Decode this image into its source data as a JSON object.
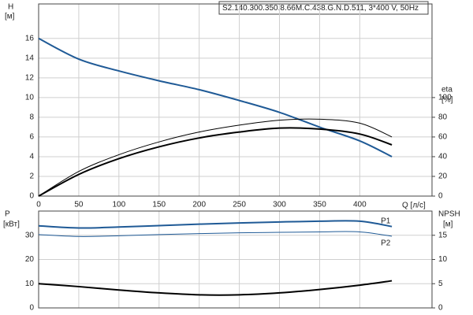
{
  "chart_data": [
    {
      "type": "line",
      "title": "S2.140.300.350.8.66M.C.438.G.N.D.511, 3*400 V, 50Hz",
      "y_label": "H",
      "y_unit": "[м]",
      "y2_label": "eta",
      "y2_unit": "[%]",
      "x_label": "Q [л/с]",
      "x": [
        0,
        50,
        100,
        150,
        200,
        250,
        300,
        350,
        400,
        440
      ],
      "xlim": [
        0,
        490
      ],
      "xticks": [
        0,
        50,
        100,
        150,
        200,
        250,
        300,
        350,
        400
      ],
      "ylim": [
        0,
        19.5
      ],
      "yticks": [
        0,
        2,
        4,
        6,
        8,
        10,
        12,
        14,
        16
      ],
      "y2lim": [
        0,
        195
      ],
      "y2ticks": [
        0,
        20,
        40,
        60,
        80,
        100
      ],
      "grid": true,
      "series": [
        {
          "color": "#1f5a96",
          "linewidth": 2,
          "values": [
            16,
            13.9,
            12.7,
            11.7,
            10.8,
            9.7,
            8.5,
            7.0,
            5.6,
            4.0
          ]
        },
        {
          "color": "#000000",
          "linewidth": 1,
          "axis": "y2",
          "values": [
            0,
            25,
            42,
            55,
            65,
            72,
            77,
            78,
            74,
            60
          ]
        },
        {
          "color": "#000000",
          "linewidth": 2,
          "axis": "y2",
          "values": [
            0,
            22,
            38,
            50,
            59,
            65,
            69,
            68,
            63,
            52
          ]
        }
      ]
    },
    {
      "type": "line",
      "y_label": "P",
      "y_unit": "[кВт]",
      "y2_label": "NPSH",
      "y2_unit": "[м]",
      "x": [
        0,
        50,
        100,
        150,
        200,
        250,
        300,
        350,
        400,
        440
      ],
      "ylim": [
        0,
        40
      ],
      "yticks": [
        0,
        10,
        20,
        30
      ],
      "y2lim": [
        0,
        20
      ],
      "y2ticks": [
        0,
        5,
        10,
        15
      ],
      "grid": true,
      "series": [
        {
          "name": "P1",
          "color": "#1f5a96",
          "linewidth": 2,
          "values": [
            33.9,
            33.0,
            33.4,
            34.0,
            34.6,
            35.1,
            35.5,
            35.8,
            35.8,
            33.6
          ]
        },
        {
          "name": "P2",
          "color": "#1f5a96",
          "linewidth": 1,
          "values": [
            30.3,
            29.5,
            29.8,
            30.3,
            30.7,
            31.0,
            31.2,
            31.4,
            31.4,
            29.6
          ]
        },
        {
          "color": "#000000",
          "linewidth": 2,
          "axis": "y2",
          "values": [
            5.0,
            4.4,
            3.7,
            3.1,
            2.7,
            2.7,
            3.1,
            3.8,
            4.7,
            5.6
          ]
        }
      ]
    }
  ]
}
